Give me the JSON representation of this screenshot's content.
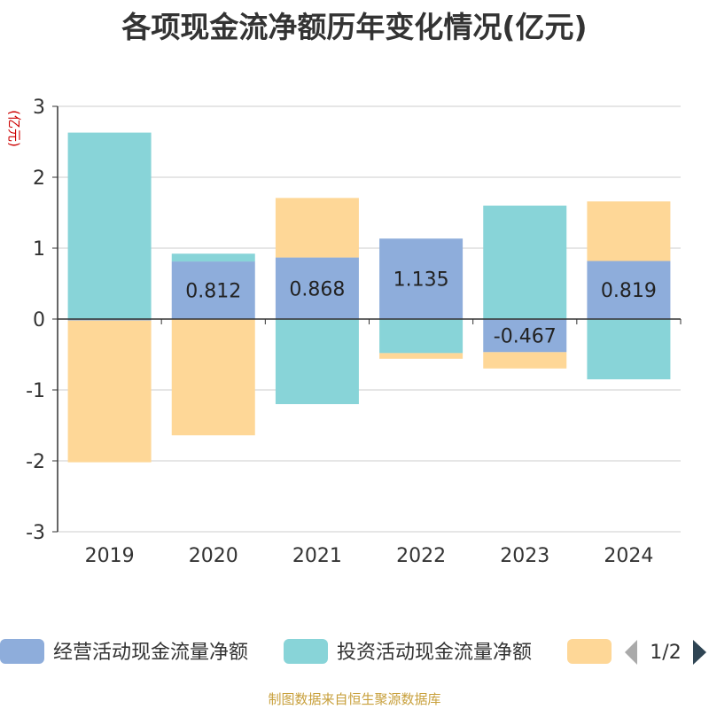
{
  "chart_data": {
    "type": "bar",
    "stacked": true,
    "title": "各项现金流净额历年变化情况(亿元)",
    "ylabel": "(亿元)",
    "categories": [
      "2019",
      "2020",
      "2021",
      "2022",
      "2023",
      "2024"
    ],
    "ylim": [
      -3,
      3
    ],
    "yticks": [
      3,
      2,
      1,
      0,
      -1,
      -2,
      -3
    ],
    "grid": true,
    "legend_position": "bottom",
    "series": [
      {
        "name": "经营活动现金流量净额",
        "color": "#8eaddb",
        "values": [
          -0.02,
          0.812,
          0.868,
          1.135,
          -0.467,
          0.819
        ],
        "labels": [
          "",
          "0.812",
          "0.868",
          "1.135",
          "-0.467",
          "0.819"
        ]
      },
      {
        "name": "投资活动现金流量净额",
        "color": "#88d4d8",
        "values": [
          2.63,
          0.11,
          -1.2,
          -0.48,
          1.6,
          -0.85
        ]
      },
      {
        "name": "",
        "color": "#fed797",
        "values": [
          -2.0,
          -1.64,
          0.84,
          -0.08,
          -0.23,
          0.84
        ]
      }
    ]
  },
  "legend": {
    "page": "1/2"
  },
  "source": "制图数据来自恒生聚源数据库",
  "colors": {
    "axis": "#333333",
    "grid": "#cccccc",
    "ylabel": "#cc0000",
    "pager_active": "#2f4554",
    "pager_inactive": "#aaaaaa"
  }
}
